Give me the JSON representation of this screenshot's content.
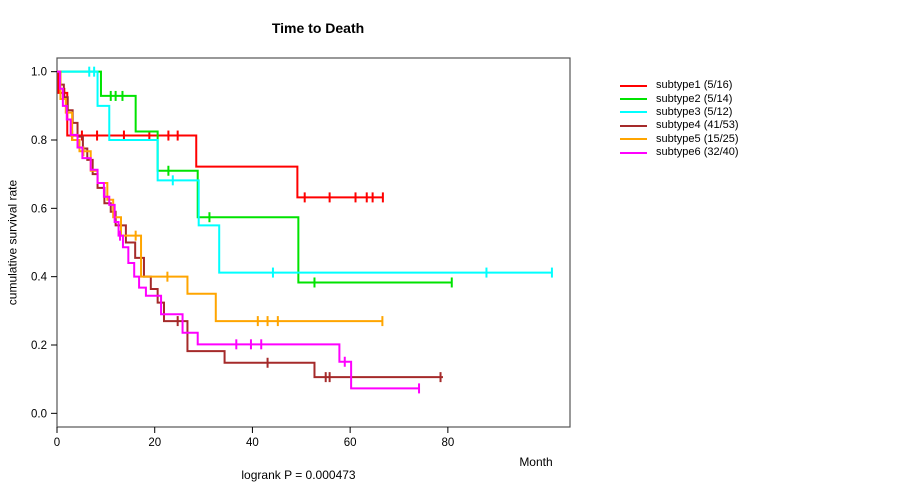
{
  "title": "Time to Death",
  "annotation": "logrank P = 0.000473",
  "x_axis": {
    "label": "Month",
    "ticks": [
      "0",
      "20",
      "40",
      "60",
      "80"
    ]
  },
  "y_axis": {
    "label": "cumulative survival rate",
    "ticks": [
      "0.0",
      "0.2",
      "0.4",
      "0.6",
      "0.8",
      "1.0"
    ]
  },
  "legend": {
    "entries": [
      {
        "label": "subtype1 (5/16)",
        "color": "#FF0000"
      },
      {
        "label": "subtype2 (5/14)",
        "color": "#00E300"
      },
      {
        "label": "subtype3 (5/12)",
        "color": "#00FFFF"
      },
      {
        "label": "subtype4 (41/53)",
        "color": "#A52A2A"
      },
      {
        "label": "subtype5 (15/25)",
        "color": "#FFA500"
      },
      {
        "label": "subtype6 (32/40)",
        "color": "#FF00FF"
      }
    ]
  },
  "chart_data": {
    "type": "line",
    "variant": "kaplan-meier-step",
    "title": "Time to Death",
    "xlabel": "Month",
    "ylabel": "cumulative survival rate",
    "annotation": "logrank P = 0.000473",
    "xlim": [
      0,
      105
    ],
    "ylim": [
      -0.04,
      1.04
    ],
    "x_ticks": [
      0,
      20,
      40,
      60,
      80
    ],
    "y_ticks": [
      0.0,
      0.2,
      0.4,
      0.6,
      0.8,
      1.0
    ],
    "grid": false,
    "legend_position": "right-outside",
    "series": [
      {
        "name": "subtype1 (5/16)",
        "color": "#FF0000",
        "steps": [
          [
            0,
            1.0
          ],
          [
            0.3,
            0.938
          ],
          [
            2.1,
            0.813
          ],
          [
            28.5,
            0.722
          ],
          [
            49.2,
            0.632
          ]
        ],
        "end": 66.7,
        "censor_ticks": [
          1.5,
          3.1,
          5.1,
          8.2,
          13.7,
          18.9,
          22.8,
          24.7,
          50.7,
          55.8,
          61.1,
          63.4,
          64.6,
          66.7
        ]
      },
      {
        "name": "subtype2 (5/14)",
        "color": "#00E300",
        "steps": [
          [
            0,
            1.0
          ],
          [
            9.0,
            0.929
          ],
          [
            16.1,
            0.825
          ],
          [
            20.6,
            0.71
          ],
          [
            28.8,
            0.574
          ],
          [
            49.4,
            0.383
          ]
        ],
        "end": 80.8,
        "censor_ticks": [
          11.0,
          12.0,
          13.4,
          22.8,
          31.2,
          52.7,
          80.8
        ]
      },
      {
        "name": "subtype3 (5/12)",
        "color": "#00FFFF",
        "steps": [
          [
            0,
            1.0
          ],
          [
            8.3,
            0.9
          ],
          [
            10.7,
            0.8
          ],
          [
            20.6,
            0.682
          ],
          [
            29.0,
            0.55
          ],
          [
            33.2,
            0.412
          ]
        ],
        "end": 101.3,
        "censor_ticks": [
          6.6,
          7.6,
          23.7,
          44.2,
          87.9,
          101.3
        ]
      },
      {
        "name": "subtype4 (41/53)",
        "color": "#A52A2A",
        "steps": [
          [
            0,
            1.0
          ],
          [
            0.7,
            0.962
          ],
          [
            1.4,
            0.925
          ],
          [
            2.2,
            0.887
          ],
          [
            3.2,
            0.85
          ],
          [
            4.2,
            0.81
          ],
          [
            5.3,
            0.775
          ],
          [
            6.2,
            0.742
          ],
          [
            7.3,
            0.7
          ],
          [
            8.3,
            0.66
          ],
          [
            9.7,
            0.615
          ],
          [
            11.0,
            0.59
          ],
          [
            12.0,
            0.55
          ],
          [
            14.1,
            0.5
          ],
          [
            16.0,
            0.455
          ],
          [
            17.8,
            0.4
          ],
          [
            19.2,
            0.364
          ],
          [
            20.6,
            0.324
          ],
          [
            21.9,
            0.27
          ],
          [
            26.7,
            0.182
          ],
          [
            34.3,
            0.148
          ],
          [
            52.7,
            0.106
          ]
        ],
        "end": 79.0,
        "censor_ticks": [
          24.7,
          43.1,
          55.0,
          55.8,
          78.5
        ]
      },
      {
        "name": "subtype5 (15/25)",
        "color": "#FFA500",
        "steps": [
          [
            0,
            1.0
          ],
          [
            0.7,
            0.92
          ],
          [
            1.8,
            0.88
          ],
          [
            3.1,
            0.8
          ],
          [
            4.6,
            0.767
          ],
          [
            6.9,
            0.71
          ],
          [
            8.3,
            0.674
          ],
          [
            10.3,
            0.625
          ],
          [
            11.5,
            0.574
          ],
          [
            13.1,
            0.52
          ],
          [
            17.2,
            0.4
          ],
          [
            26.7,
            0.35
          ],
          [
            32.5,
            0.27
          ]
        ],
        "end": 66.6,
        "censor_ticks": [
          5.4,
          16.1,
          22.6,
          41.1,
          43.1,
          45.2,
          66.6
        ]
      },
      {
        "name": "subtype6 (32/40)",
        "color": "#FF00FF",
        "steps": [
          [
            0,
            1.0
          ],
          [
            0.6,
            0.95
          ],
          [
            1.2,
            0.9
          ],
          [
            2.0,
            0.86
          ],
          [
            2.8,
            0.815
          ],
          [
            4.2,
            0.778
          ],
          [
            5.2,
            0.747
          ],
          [
            6.9,
            0.713
          ],
          [
            8.3,
            0.674
          ],
          [
            9.6,
            0.634
          ],
          [
            10.7,
            0.61
          ],
          [
            11.8,
            0.56
          ],
          [
            12.6,
            0.52
          ],
          [
            13.5,
            0.486
          ],
          [
            14.6,
            0.44
          ],
          [
            15.8,
            0.4
          ],
          [
            16.8,
            0.368
          ],
          [
            18.2,
            0.344
          ],
          [
            21.3,
            0.29
          ],
          [
            25.7,
            0.236
          ],
          [
            28.8,
            0.202
          ],
          [
            57.8,
            0.151
          ],
          [
            60.2,
            0.073
          ]
        ],
        "end": 74.1,
        "censor_ticks": [
          12.9,
          36.7,
          39.7,
          41.8,
          58.9,
          74.1
        ]
      }
    ]
  }
}
